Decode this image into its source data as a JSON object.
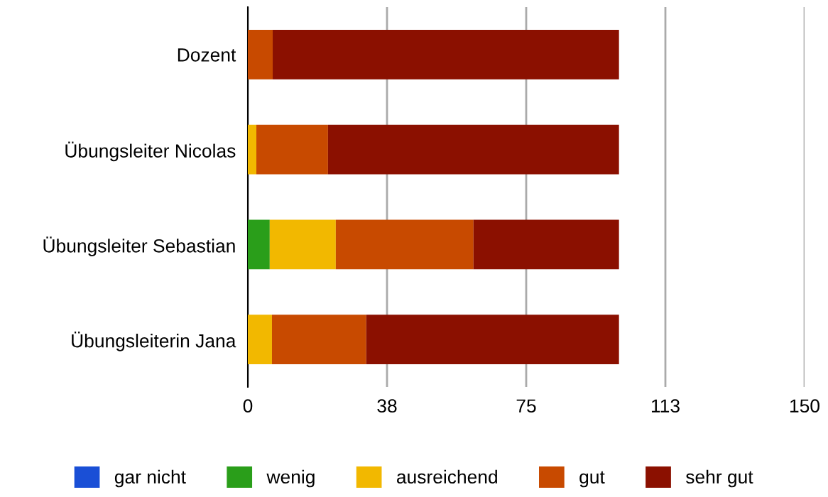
{
  "chart_data": {
    "type": "bar",
    "orientation": "horizontal",
    "stacked": true,
    "categories": [
      "Dozent",
      "Übungsleiter Nicolas",
      "Übungsleiter Sebastian",
      "Übungsleiterin Jana"
    ],
    "series": [
      {
        "name": "gar nicht",
        "color": "#1a4fd6",
        "values": [
          0,
          0,
          0,
          0
        ]
      },
      {
        "name": "wenig",
        "color": "#2a9e1a",
        "values": [
          0,
          0,
          5.9,
          0
        ]
      },
      {
        "name": "ausreichend",
        "color": "#f2b800",
        "values": [
          0,
          2.3,
          17.8,
          6.5
        ]
      },
      {
        "name": "gut",
        "color": "#c84a00",
        "values": [
          6.7,
          19.3,
          37.1,
          25.4
        ]
      },
      {
        "name": "sehr gut",
        "color": "#8b1000",
        "values": [
          93.3,
          78.4,
          39.2,
          68.1
        ]
      }
    ],
    "xlim": [
      0,
      150
    ],
    "xticks": [
      0,
      {
        "value": 37.5,
        "label": "38"
      },
      75,
      {
        "value": 112.5,
        "label": "113"
      },
      150
    ],
    "grid": "x",
    "legend": "bottom"
  }
}
